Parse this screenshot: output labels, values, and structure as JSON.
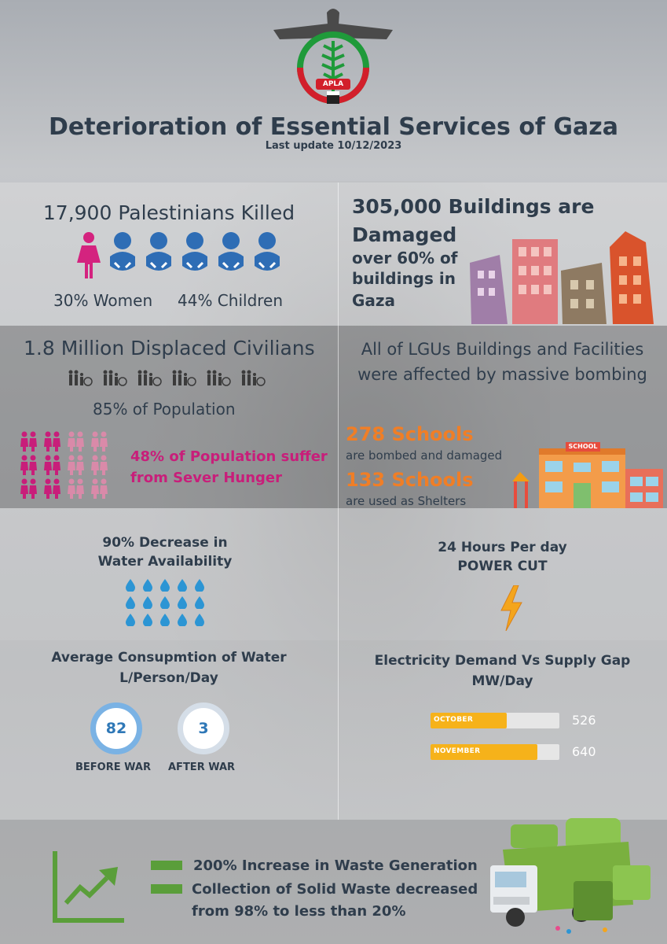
{
  "header": {
    "logo_text": "APLA",
    "title": "Deterioration of Essential Services of Gaza",
    "update": "Last update 10/12/2023"
  },
  "killed": {
    "headline": "17,900 Palestinians Killed",
    "women": "30% Women",
    "children": "44% Children"
  },
  "buildings": {
    "headline_1": "305,000 Buildings are",
    "headline_2": "Damaged",
    "detail_1": "over 60% of",
    "detail_2": "buildings in",
    "detail_3": "Gaza"
  },
  "displaced": {
    "headline": "1.8 Million Displaced Civilians",
    "percent": "85% of Population",
    "hunger_1": "48% of Population suffer",
    "hunger_2": "from Sever Hunger"
  },
  "lgu": {
    "line_1": "All of LGUs Buildings and Facilities",
    "line_2": "were affected by massive bombing",
    "schools_bombed": "278 Schools",
    "schools_bombed_note": "are bombed and damaged",
    "schools_shelter": "133 Schools",
    "schools_shelter_note": "are used as Shelters",
    "school_sign": "SCHOOL"
  },
  "water": {
    "line_1": "90% Decrease in",
    "line_2": "Water Availability"
  },
  "power": {
    "line_1": "24 Hours Per day",
    "line_2": "POWER CUT"
  },
  "consumption": {
    "title_1": "Average Consupmtion of Water",
    "title_2": "L/Person/Day",
    "before_value": "82",
    "after_value": "3",
    "before_label": "BEFORE WAR",
    "after_label": "AFTER WAR"
  },
  "electricity": {
    "title_1": "Electricity Demand Vs Supply Gap",
    "title_2": "MW/Day"
  },
  "chart_data": {
    "type": "bar",
    "categories": [
      "OCTOBER",
      "NOVEMBER"
    ],
    "values": [
      526,
      640
    ],
    "fill_fraction": [
      0.59,
      0.83
    ],
    "bar_color": "#f6b21a"
  },
  "waste": {
    "line_1": "200% Increase in Waste Generation",
    "line_2": "Collection of Solid Waste decreased",
    "line_3": "from 98% to less than 20%"
  },
  "colors": {
    "title": "#2f3d4c",
    "accent_orange": "#f07e26",
    "accent_pink": "#c81e7a",
    "baby_blue": "#2e6db5",
    "green": "#5a9e3a"
  }
}
